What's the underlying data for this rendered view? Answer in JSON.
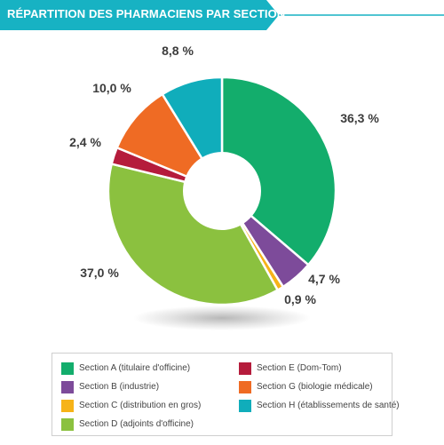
{
  "header": {
    "title": "RÉPARTITION DES PHARMACIENS PAR SECTION",
    "color": "#17b2c3"
  },
  "chart_data": {
    "type": "pie",
    "title": "RÉPARTITION DES PHARMACIENS PAR SECTION",
    "style": "donut",
    "series": [
      {
        "name": "Section A (titulaire d'officine)",
        "value": 36.3,
        "label": "36,3 %",
        "color": "#13ad6c"
      },
      {
        "name": "Section B (industrie)",
        "value": 4.7,
        "label": "4,7 %",
        "color": "#7d4b9a"
      },
      {
        "name": "Section C (distribution en gros)",
        "value": 0.9,
        "label": "0,9 %",
        "color": "#f6b318"
      },
      {
        "name": "Section D (adjoints d'officine)",
        "value": 37.0,
        "label": "37,0 %",
        "color": "#8bc13f"
      },
      {
        "name": "Section E (Dom-Tom)",
        "value": 2.4,
        "label": "2,4 %",
        "color": "#b51c3c"
      },
      {
        "name": "Section G (biologie médicale)",
        "value": 10.0,
        "label": "10,0 %",
        "color": "#ef6b24"
      },
      {
        "name": "Section H (établissements de santé)",
        "value": 8.8,
        "label": "8,8 %",
        "color": "#10adbb"
      }
    ],
    "legend_placement": "bottom"
  },
  "legend": {
    "items": [
      {
        "label": "Section A (titulaire d'officine)",
        "color": "#13ad6c"
      },
      {
        "label": "Section B (industrie)",
        "color": "#7d4b9a"
      },
      {
        "label": "Section C (distribution en gros)",
        "color": "#f6b318"
      },
      {
        "label": "Section D (adjoints d'officine)",
        "color": "#8bc13f"
      },
      {
        "label": "Section E (Dom-Tom)",
        "color": "#b51c3c"
      },
      {
        "label": "Section G (biologie médicale)",
        "color": "#ef6b24"
      },
      {
        "label": "Section H (établissements de santé)",
        "color": "#10adbb"
      }
    ]
  }
}
